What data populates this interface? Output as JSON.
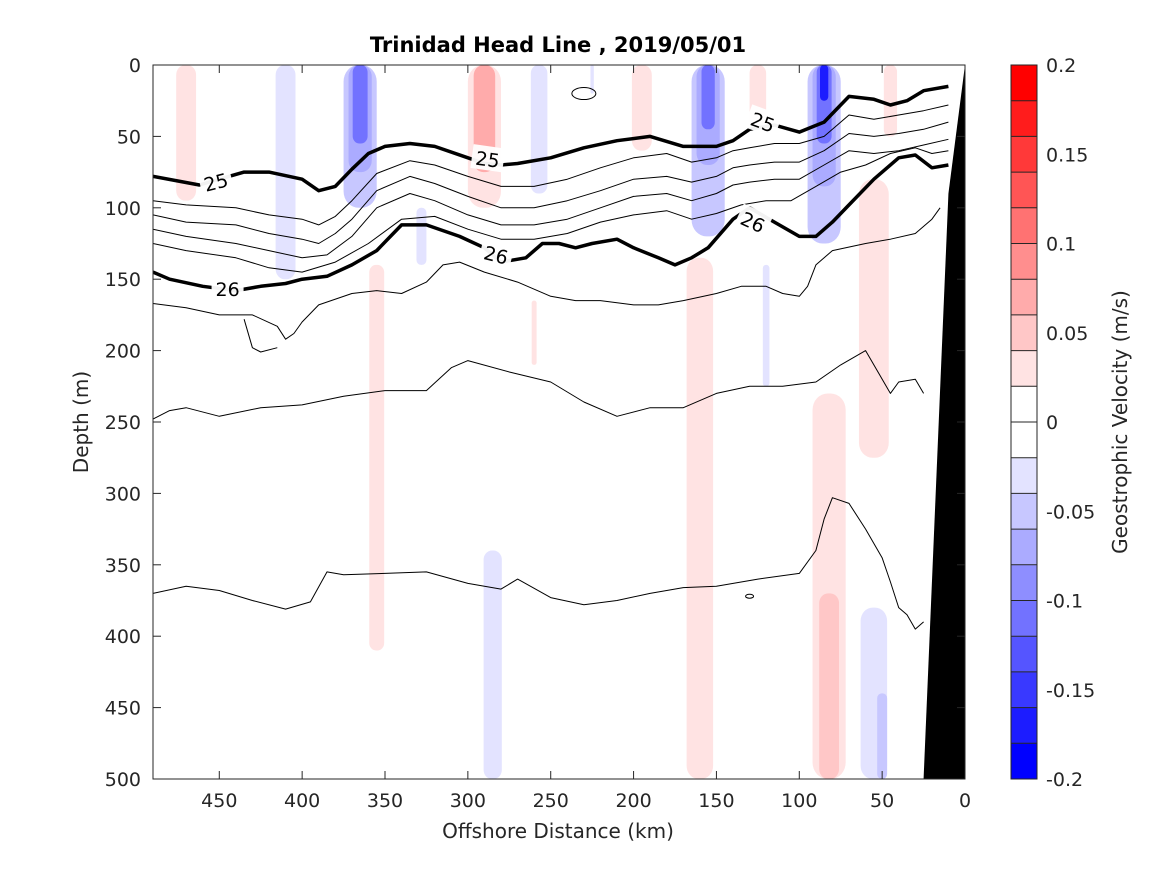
{
  "chart_data": {
    "type": "heatmap",
    "title": "Trinidad Head Line , 2019/05/01",
    "xlabel": "Offshore Distance (km)",
    "ylabel": "Depth (m)",
    "xlim": [
      490,
      0
    ],
    "ylim": [
      500,
      0
    ],
    "xticks": [
      "450",
      "400",
      "350",
      "300",
      "250",
      "200",
      "150",
      "100",
      "50",
      "0"
    ],
    "yticks": [
      "0",
      "50",
      "100",
      "150",
      "200",
      "250",
      "300",
      "350",
      "400",
      "450",
      "500"
    ],
    "colorbar": {
      "label": "Geostrophic Velocity (m/s)",
      "range": [
        -0.2,
        0.2
      ],
      "ticks": [
        "0.2",
        "0.15",
        "0.1",
        "0.05",
        "0",
        "-0.05",
        "-0.1",
        "-0.15",
        "-0.2"
      ],
      "colors": [
        "#0000ff",
        "#1c1cff",
        "#3939ff",
        "#5555ff",
        "#7272ff",
        "#8e8eff",
        "#ababff",
        "#c7c7ff",
        "#e3e3ff",
        "#ffffff",
        "#ffffff",
        "#ffe3e3",
        "#ffc7c7",
        "#ffabab",
        "#ff8e8e",
        "#ff7272",
        "#ff5555",
        "#ff3939",
        "#ff1c1c",
        "#ff0000"
      ]
    },
    "velocity_patches": [
      {
        "x": 470,
        "y": [
          0,
          95
        ],
        "w": 12,
        "v": 0.03
      },
      {
        "x": 410,
        "y": [
          0,
          150
        ],
        "w": 12,
        "v": -0.03
      },
      {
        "x": 365,
        "y": [
          0,
          100
        ],
        "w": 20,
        "v": -0.04
      },
      {
        "x": 365,
        "y": [
          0,
          75
        ],
        "w": 14,
        "v": -0.08
      },
      {
        "x": 365,
        "y": [
          0,
          55
        ],
        "w": 9,
        "v": -0.11
      },
      {
        "x": 355,
        "y": [
          140,
          410
        ],
        "w": 9,
        "v": 0.03
      },
      {
        "x": 328,
        "y": [
          100,
          140
        ],
        "w": 6,
        "v": -0.03
      },
      {
        "x": 290,
        "y": [
          0,
          100
        ],
        "w": 20,
        "v": 0.03
      },
      {
        "x": 290,
        "y": [
          0,
          75
        ],
        "w": 13,
        "v": 0.06
      },
      {
        "x": 285,
        "y": [
          340,
          500
        ],
        "w": 11,
        "v": -0.03
      },
      {
        "x": 257,
        "y": [
          0,
          90
        ],
        "w": 10,
        "v": -0.03
      },
      {
        "x": 260,
        "y": [
          165,
          210
        ],
        "w": 3,
        "v": 0.03
      },
      {
        "x": 225,
        "y": [
          0,
          20
        ],
        "w": 2,
        "v": -0.03
      },
      {
        "x": 195,
        "y": [
          0,
          60
        ],
        "w": 12,
        "v": 0.03
      },
      {
        "x": 155,
        "y": [
          0,
          120
        ],
        "w": 20,
        "v": -0.04
      },
      {
        "x": 155,
        "y": [
          0,
          70
        ],
        "w": 14,
        "v": -0.08
      },
      {
        "x": 155,
        "y": [
          0,
          45
        ],
        "w": 8,
        "v": -0.11
      },
      {
        "x": 160,
        "y": [
          135,
          500
        ],
        "w": 16,
        "v": 0.03
      },
      {
        "x": 125,
        "y": [
          0,
          45
        ],
        "w": 10,
        "v": 0.03
      },
      {
        "x": 120,
        "y": [
          140,
          225
        ],
        "w": 4,
        "v": -0.03
      },
      {
        "x": 85,
        "y": [
          0,
          125
        ],
        "w": 20,
        "v": -0.04
      },
      {
        "x": 85,
        "y": [
          0,
          85
        ],
        "w": 14,
        "v": -0.08
      },
      {
        "x": 85,
        "y": [
          0,
          55
        ],
        "w": 9,
        "v": -0.12
      },
      {
        "x": 85,
        "y": [
          0,
          25
        ],
        "w": 5,
        "v": -0.17
      },
      {
        "x": 82,
        "y": [
          230,
          500
        ],
        "w": 20,
        "v": 0.03
      },
      {
        "x": 82,
        "y": [
          370,
          500
        ],
        "w": 12,
        "v": 0.05
      },
      {
        "x": 55,
        "y": [
          80,
          275
        ],
        "w": 18,
        "v": 0.03
      },
      {
        "x": 45,
        "y": [
          0,
          50
        ],
        "w": 8,
        "v": 0.03
      },
      {
        "x": 55,
        "y": [
          380,
          500
        ],
        "w": 16,
        "v": -0.03
      },
      {
        "x": 50,
        "y": [
          440,
          500
        ],
        "w": 6,
        "v": -0.06
      }
    ],
    "isopycnals": [
      {
        "level": "25",
        "bold": true,
        "x": [
          490,
          462,
          450,
          435,
          420,
          400,
          390,
          380,
          370,
          360,
          350,
          335,
          320,
          300,
          290,
          280,
          270,
          250,
          230,
          210,
          190,
          170,
          150,
          140,
          130,
          115,
          100,
          85,
          70,
          55,
          45,
          35,
          25,
          10
        ],
        "y": [
          78,
          84,
          80,
          75,
          75,
          80,
          88,
          85,
          73,
          62,
          57,
          55,
          57,
          65,
          69,
          70,
          69,
          65,
          58,
          53,
          50,
          57,
          57,
          53,
          45,
          42,
          47,
          40,
          22,
          24,
          28,
          25,
          18,
          15
        ]
      },
      {
        "level": "26",
        "bold": true,
        "x": [
          490,
          480,
          460,
          440,
          425,
          410,
          400,
          385,
          370,
          355,
          340,
          325,
          305,
          290,
          280,
          265,
          255,
          245,
          235,
          225,
          210,
          200,
          185,
          175,
          165,
          155,
          140,
          130,
          115,
          100,
          90,
          80,
          70,
          55,
          40,
          30,
          20,
          10
        ],
        "y": [
          145,
          150,
          155,
          158,
          155,
          153,
          150,
          148,
          140,
          130,
          112,
          112,
          120,
          128,
          138,
          135,
          125,
          125,
          128,
          125,
          122,
          128,
          135,
          140,
          135,
          128,
          108,
          100,
          110,
          120,
          120,
          110,
          98,
          80,
          65,
          63,
          72,
          70
        ]
      },
      {
        "level": "",
        "bold": false,
        "x": [
          490,
          470,
          440,
          420,
          400,
          390,
          380,
          370,
          355,
          335,
          320,
          300,
          280,
          260,
          240,
          220,
          200,
          180,
          165,
          150,
          140,
          130,
          115,
          100,
          85,
          70,
          55,
          40,
          25,
          10
        ],
        "y": [
          95,
          98,
          100,
          105,
          108,
          112,
          106,
          95,
          76,
          67,
          70,
          78,
          85,
          85,
          80,
          72,
          65,
          62,
          68,
          65,
          60,
          58,
          55,
          55,
          50,
          35,
          38,
          35,
          32,
          28
        ]
      },
      {
        "level": "",
        "bold": false,
        "x": [
          490,
          470,
          440,
          420,
          400,
          390,
          380,
          370,
          355,
          335,
          320,
          300,
          280,
          260,
          240,
          220,
          200,
          180,
          165,
          150,
          140,
          130,
          115,
          100,
          85,
          70,
          55,
          40,
          25,
          10
        ],
        "y": [
          105,
          110,
          112,
          118,
          122,
          125,
          118,
          108,
          88,
          78,
          83,
          92,
          100,
          100,
          95,
          88,
          80,
          78,
          82,
          78,
          72,
          70,
          68,
          68,
          60,
          48,
          50,
          48,
          45,
          40
        ]
      },
      {
        "level": "",
        "bold": false,
        "x": [
          490,
          470,
          440,
          420,
          400,
          385,
          370,
          355,
          335,
          320,
          300,
          280,
          260,
          240,
          220,
          200,
          180,
          165,
          150,
          140,
          130,
          115,
          100,
          85,
          70,
          55,
          40,
          25,
          10
        ],
        "y": [
          115,
          120,
          125,
          130,
          135,
          133,
          120,
          100,
          90,
          95,
          105,
          112,
          112,
          108,
          100,
          92,
          90,
          95,
          90,
          84,
          82,
          80,
          80,
          70,
          60,
          62,
          60,
          56,
          52
        ]
      },
      {
        "level": "",
        "bold": false,
        "x": [
          490,
          470,
          440,
          420,
          400,
          380,
          360,
          340,
          320,
          300,
          280,
          260,
          240,
          220,
          200,
          180,
          165,
          150,
          135,
          120,
          105,
          90,
          75,
          60,
          45,
          30,
          20,
          10
        ],
        "y": [
          125,
          130,
          135,
          142,
          145,
          138,
          125,
          108,
          106,
          115,
          122,
          122,
          118,
          110,
          105,
          102,
          108,
          104,
          98,
          95,
          95,
          85,
          75,
          70,
          62,
          58,
          62,
          60
        ]
      },
      {
        "level": "",
        "bold": false,
        "x": [
          490,
          470,
          450,
          430,
          415,
          410,
          405,
          400,
          390,
          370,
          355,
          340,
          325,
          315,
          305,
          290,
          270,
          250,
          235,
          220,
          200,
          185,
          170,
          150,
          135,
          120,
          110,
          100,
          95,
          90,
          80,
          60,
          45,
          30,
          20,
          15
        ],
        "y": [
          167,
          170,
          175,
          175,
          183,
          192,
          188,
          180,
          168,
          160,
          158,
          160,
          152,
          140,
          138,
          145,
          152,
          162,
          165,
          165,
          168,
          168,
          165,
          160,
          155,
          155,
          160,
          162,
          155,
          140,
          130,
          125,
          122,
          118,
          108,
          100
        ]
      },
      {
        "level": "",
        "bold": false,
        "x": [
          435,
          430,
          425,
          415
        ],
        "y": [
          178,
          198,
          201,
          198
        ]
      },
      {
        "level": "",
        "bold": false,
        "x": [
          490,
          480,
          470,
          450,
          425,
          400,
          375,
          350,
          325,
          310,
          300,
          275,
          250,
          230,
          210,
          190,
          170,
          150,
          130,
          110,
          90,
          75,
          60,
          52,
          45,
          40,
          30,
          25
        ],
        "y": [
          248,
          242,
          240,
          246,
          240,
          238,
          232,
          228,
          228,
          212,
          207,
          215,
          222,
          236,
          246,
          240,
          240,
          230,
          225,
          225,
          222,
          210,
          200,
          216,
          230,
          222,
          220,
          230
        ]
      },
      {
        "level": "",
        "bold": false,
        "x": [
          490,
          470,
          450,
          430,
          410,
          395,
          385,
          375,
          350,
          325,
          300,
          280,
          270,
          250,
          230,
          210,
          190,
          170,
          150,
          125,
          100,
          90,
          85,
          80,
          70,
          60,
          50,
          45,
          40,
          35,
          30,
          25
        ],
        "y": [
          370,
          365,
          368,
          375,
          381,
          376,
          355,
          357,
          356,
          355,
          363,
          367,
          360,
          373,
          378,
          375,
          370,
          366,
          365,
          360,
          356,
          340,
          318,
          303,
          307,
          325,
          345,
          362,
          380,
          385,
          395,
          390
        ]
      }
    ],
    "contour_labels": [
      {
        "text": "25",
        "x": 452,
        "y": 82,
        "rot": -14
      },
      {
        "text": "25",
        "x": 288,
        "y": 66,
        "rot": 8
      },
      {
        "text": "25",
        "x": 122,
        "y": 40,
        "rot": 20
      },
      {
        "text": "26",
        "x": 445,
        "y": 157,
        "rot": 0
      },
      {
        "text": "26",
        "x": 283,
        "y": 133,
        "rot": 14
      },
      {
        "text": "26",
        "x": 128,
        "y": 110,
        "rot": 25
      }
    ],
    "bathymetry": {
      "x": [
        25,
        10,
        0,
        0
      ],
      "y": [
        500,
        90,
        0,
        500
      ]
    },
    "grid": false
  }
}
